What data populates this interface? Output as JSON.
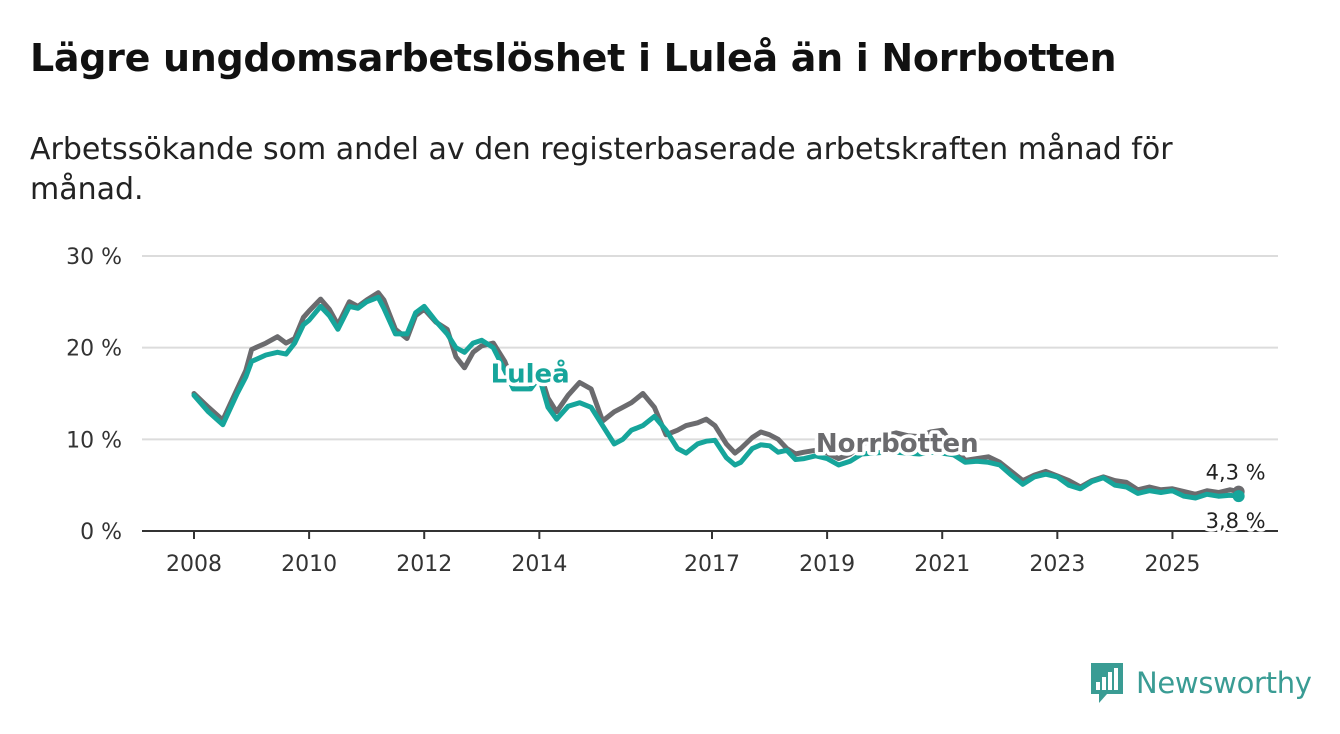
{
  "header": {
    "title": "Lägre ungdomsarbetslöshet i Luleå än i Norrbotten",
    "subtitle": "Arbetssökande som andel av den registerbaserade arbetskraften månad för månad."
  },
  "brand": {
    "name": "Newsworthy",
    "icon": "bar-chart-logo-icon"
  },
  "colors": {
    "lulea": "#16a59b",
    "norrbotten": "#6b6b6e",
    "grid": "#dcdcdc",
    "axis": "#333333",
    "brand": "#3a9c94"
  },
  "chart_data": {
    "type": "line",
    "title": "Lägre ungdomsarbetslöshet i Luleå än i Norrbotten",
    "xlabel": "",
    "ylabel": "",
    "ylim": [
      0,
      30
    ],
    "xlim": [
      2007.6,
      2026.8
    ],
    "y_ticks": [
      0,
      10,
      20,
      30
    ],
    "y_tick_labels": [
      "0 %",
      "10 %",
      "20 %",
      "30 %"
    ],
    "x_ticks": [
      2008,
      2010,
      2012,
      2014,
      2017,
      2019,
      2021,
      2023,
      2025
    ],
    "x_tick_labels": [
      "2008",
      "2010",
      "2012",
      "2014",
      "2017",
      "2019",
      "2021",
      "2023",
      "2025"
    ],
    "grid": true,
    "series": [
      {
        "name": "Norrbotten",
        "label": "Norrbotten",
        "final_label": "4,3 %",
        "x": [
          2008.0,
          2008.25,
          2008.5,
          2008.75,
          2008.9,
          2009.0,
          2009.25,
          2009.45,
          2009.6,
          2009.75,
          2009.9,
          2010.0,
          2010.2,
          2010.35,
          2010.5,
          2010.7,
          2010.85,
          2011.0,
          2011.2,
          2011.3,
          2011.5,
          2011.7,
          2011.85,
          2012.0,
          2012.2,
          2012.4,
          2012.55,
          2012.7,
          2012.85,
          2013.0,
          2013.2,
          2013.4,
          2013.55,
          2013.7,
          2013.85,
          2014.0,
          2014.15,
          2014.3,
          2014.5,
          2014.7,
          2014.9,
          2015.1,
          2015.3,
          2015.45,
          2015.6,
          2015.8,
          2016.0,
          2016.2,
          2016.4,
          2016.55,
          2016.75,
          2016.9,
          2017.05,
          2017.25,
          2017.4,
          2017.5,
          2017.7,
          2017.85,
          2018.0,
          2018.15,
          2018.3,
          2018.45,
          2018.6,
          2018.8,
          2019.0,
          2019.2,
          2019.4,
          2019.6,
          2019.8,
          2020.0,
          2020.2,
          2020.4,
          2020.6,
          2020.8,
          2021.0,
          2021.2,
          2021.4,
          2021.6,
          2021.8,
          2022.0,
          2022.2,
          2022.4,
          2022.6,
          2022.8,
          2023.0,
          2023.2,
          2023.4,
          2023.6,
          2023.8,
          2024.0,
          2024.2,
          2024.4,
          2024.6,
          2024.8,
          2025.0,
          2025.2,
          2025.4,
          2025.6,
          2025.8,
          2026.0,
          2026.15
        ],
        "y": [
          15.0,
          13.5,
          12.1,
          15.5,
          17.5,
          19.8,
          20.5,
          21.2,
          20.5,
          21.0,
          23.3,
          24.0,
          25.3,
          24.2,
          22.5,
          25.0,
          24.5,
          25.2,
          26.0,
          25.2,
          22.0,
          21.0,
          23.5,
          24.2,
          22.8,
          22.0,
          19.0,
          17.8,
          19.5,
          20.2,
          20.5,
          18.5,
          16.0,
          16.5,
          16.0,
          17.5,
          14.5,
          13.0,
          14.8,
          16.2,
          15.5,
          12.0,
          13.0,
          13.5,
          14.0,
          15.0,
          13.5,
          10.5,
          11.0,
          11.5,
          11.8,
          12.2,
          11.5,
          9.5,
          8.5,
          9.0,
          10.2,
          10.8,
          10.5,
          10.0,
          9.0,
          8.4,
          8.6,
          8.8,
          8.5,
          7.9,
          8.4,
          9.4,
          10.1,
          10.4,
          10.7,
          10.4,
          10.3,
          10.8,
          11.0,
          9.2,
          7.7,
          7.9,
          8.1,
          7.5,
          6.5,
          5.5,
          6.1,
          6.5,
          6.0,
          5.5,
          4.8,
          5.5,
          5.9,
          5.5,
          5.3,
          4.5,
          4.8,
          4.5,
          4.6,
          4.3,
          4.0,
          4.4,
          4.2,
          4.5,
          4.3
        ]
      },
      {
        "name": "Luleå",
        "label": "Luleå",
        "final_label": "3,8 %",
        "x": [
          2008.0,
          2008.25,
          2008.5,
          2008.75,
          2008.9,
          2009.0,
          2009.25,
          2009.45,
          2009.6,
          2009.75,
          2009.9,
          2010.0,
          2010.2,
          2010.35,
          2010.5,
          2010.7,
          2010.85,
          2011.0,
          2011.2,
          2011.3,
          2011.5,
          2011.7,
          2011.85,
          2012.0,
          2012.2,
          2012.4,
          2012.55,
          2012.7,
          2012.85,
          2013.0,
          2013.2,
          2013.4,
          2013.55,
          2013.7,
          2013.85,
          2014.0,
          2014.15,
          2014.3,
          2014.5,
          2014.7,
          2014.9,
          2015.1,
          2015.3,
          2015.45,
          2015.6,
          2015.8,
          2016.0,
          2016.2,
          2016.4,
          2016.55,
          2016.75,
          2016.9,
          2017.05,
          2017.25,
          2017.4,
          2017.5,
          2017.7,
          2017.85,
          2018.0,
          2018.15,
          2018.3,
          2018.45,
          2018.6,
          2018.8,
          2019.0,
          2019.2,
          2019.4,
          2019.6,
          2019.8,
          2020.0,
          2020.2,
          2020.4,
          2020.6,
          2020.8,
          2021.0,
          2021.2,
          2021.4,
          2021.6,
          2021.8,
          2022.0,
          2022.2,
          2022.4,
          2022.6,
          2022.8,
          2023.0,
          2023.2,
          2023.4,
          2023.6,
          2023.8,
          2024.0,
          2024.2,
          2024.4,
          2024.6,
          2024.8,
          2025.0,
          2025.2,
          2025.4,
          2025.6,
          2025.8,
          2026.0,
          2026.15
        ],
        "y": [
          14.8,
          13.0,
          11.6,
          15.0,
          16.8,
          18.5,
          19.2,
          19.5,
          19.3,
          20.5,
          22.5,
          23.0,
          24.5,
          23.5,
          22.0,
          24.5,
          24.3,
          25.0,
          25.5,
          24.3,
          21.5,
          21.5,
          23.8,
          24.5,
          22.9,
          21.5,
          20.0,
          19.5,
          20.5,
          20.8,
          20.0,
          17.5,
          15.5,
          15.5,
          15.5,
          16.8,
          13.5,
          12.2,
          13.6,
          14.0,
          13.5,
          11.5,
          9.5,
          10.0,
          11.0,
          11.5,
          12.5,
          11.0,
          9.0,
          8.5,
          9.5,
          9.8,
          9.9,
          8.0,
          7.2,
          7.5,
          9.0,
          9.4,
          9.3,
          8.6,
          8.8,
          7.8,
          7.9,
          8.2,
          7.9,
          7.2,
          7.6,
          8.4,
          8.5,
          8.6,
          8.6,
          8.5,
          8.4,
          8.6,
          8.5,
          8.3,
          7.5,
          7.6,
          7.5,
          7.2,
          6.1,
          5.1,
          5.9,
          6.2,
          5.9,
          5.0,
          4.6,
          5.4,
          5.8,
          5.0,
          4.8,
          4.1,
          4.4,
          4.2,
          4.4,
          3.8,
          3.6,
          4.0,
          3.8,
          3.9,
          3.8
        ]
      }
    ],
    "annotations": [
      {
        "text": "Luleå",
        "series": "Luleå",
        "x": 2013.9,
        "y": 17.3
      },
      {
        "text": "Norrbotten",
        "series": "Norrbotten",
        "x": 2019.9,
        "y": 9.7
      },
      {
        "text": "4,3 %",
        "series": "Norrbotten",
        "x": 2026.15,
        "y": 4.3
      },
      {
        "text": "3,8 %",
        "series": "Luleå",
        "x": 2026.15,
        "y": 3.8
      }
    ]
  }
}
